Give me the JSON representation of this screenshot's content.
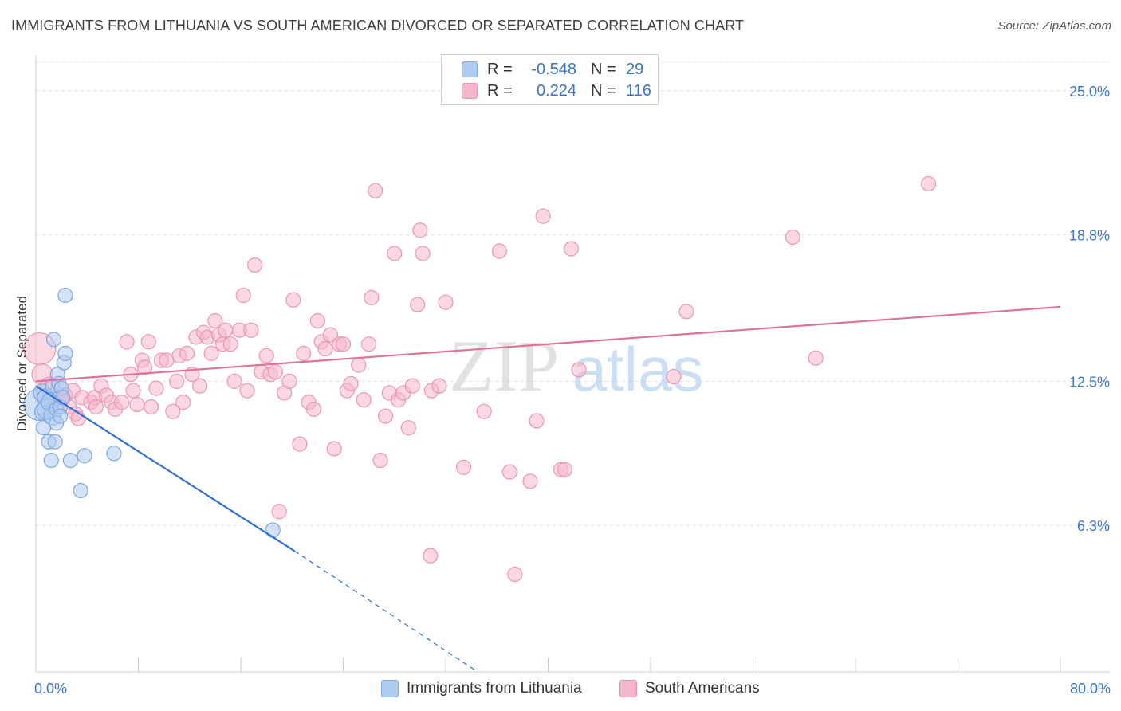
{
  "header": {
    "title": "IMMIGRANTS FROM LITHUANIA VS SOUTH AMERICAN DIVORCED OR SEPARATED CORRELATION CHART",
    "source": "Source: ZipAtlas.com"
  },
  "watermark": {
    "zip": "ZIP",
    "atlas": "atlas"
  },
  "legend_top": {
    "rows": [
      {
        "r_label": "R =",
        "r_value": "-0.548",
        "n_label": "N =",
        "n_value": "29",
        "fill": "#aecbf0",
        "stroke": "#7ea8dd"
      },
      {
        "r_label": "R =",
        "r_value": "0.224",
        "n_label": "N = ",
        "n_value": "116",
        "fill": "#f5b7cb",
        "stroke": "#e896b1"
      }
    ]
  },
  "legend_bottom": {
    "items": [
      {
        "label": "Immigrants from Lithuania",
        "fill": "#aecbf0",
        "stroke": "#7ea8dd"
      },
      {
        "label": "South Americans",
        "fill": "#f5b7cb",
        "stroke": "#e896b1"
      }
    ]
  },
  "chart_data": {
    "type": "scatter",
    "title": "IMMIGRANTS FROM LITHUANIA VS SOUTH AMERICAN DIVORCED OR SEPARATED CORRELATION CHART",
    "xlabel": "",
    "ylabel": "Divorced or Separated",
    "xlim": [
      0,
      80
    ],
    "ylim": [
      0,
      26.5
    ],
    "x_tick_labels": [
      {
        "value": 0,
        "label": "0.0%"
      },
      {
        "value": 80,
        "label": "80.0%"
      }
    ],
    "y_tick_labels": [
      {
        "value": 6.3,
        "label": "6.3%"
      },
      {
        "value": 12.5,
        "label": "12.5%"
      },
      {
        "value": 18.8,
        "label": "18.8%"
      },
      {
        "value": 25.0,
        "label": "25.0%"
      }
    ],
    "grid": true,
    "legend_position": "bottom",
    "series": [
      {
        "name": "Immigrants from Lithuania",
        "color": "#7ea8dd",
        "fill": "#aecbf0",
        "line_color": "#2f6fd1",
        "trend": {
          "x0": 0.0,
          "y0": 12.3,
          "x1": 20.2,
          "y1": 5.2,
          "dash_to_x": 34.5,
          "dash_to_y": 0.0
        },
        "points": [
          [
            0.3,
            11.5,
            4
          ],
          [
            0.5,
            12.0,
            2
          ],
          [
            0.6,
            11.2,
            2
          ],
          [
            0.6,
            10.5,
            1
          ],
          [
            0.8,
            11.8,
            2
          ],
          [
            0.9,
            11.3,
            3
          ],
          [
            1.0,
            9.9,
            1
          ],
          [
            1.1,
            11.6,
            2
          ],
          [
            1.2,
            9.1,
            1
          ],
          [
            1.3,
            12.3,
            1
          ],
          [
            1.3,
            11.0,
            2
          ],
          [
            1.4,
            14.3,
            1
          ],
          [
            1.5,
            9.9,
            1
          ],
          [
            1.6,
            11.3,
            1
          ],
          [
            1.6,
            10.7,
            1
          ],
          [
            1.7,
            12.8,
            1
          ],
          [
            1.8,
            12.4,
            1
          ],
          [
            1.9,
            11.4,
            1
          ],
          [
            1.9,
            11.0,
            1
          ],
          [
            2.0,
            12.2,
            1
          ],
          [
            2.1,
            11.8,
            1
          ],
          [
            2.2,
            13.3,
            1
          ],
          [
            2.3,
            13.7,
            1
          ],
          [
            2.3,
            16.2,
            1
          ],
          [
            2.7,
            9.1,
            1
          ],
          [
            3.5,
            7.8,
            1
          ],
          [
            3.8,
            9.3,
            1
          ],
          [
            6.1,
            9.4,
            1
          ],
          [
            18.5,
            6.1,
            1
          ]
        ]
      },
      {
        "name": "South Americans",
        "color": "#e896b1",
        "fill": "#f5b7cb",
        "line_color": "#e07299",
        "trend": {
          "x0": 0.0,
          "y0": 12.5,
          "x1": 80.0,
          "y1": 15.7
        },
        "points": [
          [
            0.3,
            13.9,
            4
          ],
          [
            0.5,
            12.8,
            3
          ],
          [
            1.0,
            12.3,
            2
          ],
          [
            1.3,
            11.6,
            1
          ],
          [
            1.6,
            12.0,
            1
          ],
          [
            2.0,
            11.7,
            1
          ],
          [
            2.3,
            11.9,
            1
          ],
          [
            2.6,
            11.4,
            1
          ],
          [
            2.9,
            12.1,
            1
          ],
          [
            3.1,
            11.1,
            1
          ],
          [
            3.3,
            10.9,
            1
          ],
          [
            3.6,
            11.8,
            1
          ],
          [
            4.3,
            11.6,
            1
          ],
          [
            4.6,
            11.8,
            1
          ],
          [
            4.7,
            11.4,
            1
          ],
          [
            5.1,
            12.3,
            1
          ],
          [
            5.5,
            11.9,
            1
          ],
          [
            5.9,
            11.6,
            1
          ],
          [
            6.2,
            11.3,
            1
          ],
          [
            6.7,
            11.6,
            1
          ],
          [
            7.1,
            14.2,
            1
          ],
          [
            7.4,
            12.8,
            1
          ],
          [
            7.6,
            12.1,
            1
          ],
          [
            7.9,
            11.5,
            1
          ],
          [
            8.3,
            13.4,
            1
          ],
          [
            8.5,
            13.1,
            1
          ],
          [
            8.8,
            14.2,
            1
          ],
          [
            9.0,
            11.4,
            1
          ],
          [
            9.4,
            12.2,
            1
          ],
          [
            9.8,
            13.4,
            1
          ],
          [
            10.2,
            13.4,
            1
          ],
          [
            10.7,
            11.2,
            1
          ],
          [
            11.0,
            12.5,
            1
          ],
          [
            11.2,
            13.6,
            1
          ],
          [
            11.5,
            11.6,
            1
          ],
          [
            11.8,
            13.7,
            1
          ],
          [
            12.2,
            12.8,
            1
          ],
          [
            12.5,
            14.4,
            1
          ],
          [
            12.8,
            12.3,
            1
          ],
          [
            13.1,
            14.6,
            1
          ],
          [
            13.4,
            14.4,
            1
          ],
          [
            13.7,
            13.7,
            1
          ],
          [
            14.0,
            15.1,
            1
          ],
          [
            14.3,
            14.5,
            1
          ],
          [
            14.6,
            14.1,
            1
          ],
          [
            14.8,
            14.7,
            1
          ],
          [
            15.2,
            14.1,
            1
          ],
          [
            15.5,
            12.5,
            1
          ],
          [
            15.9,
            14.7,
            1
          ],
          [
            16.2,
            16.2,
            1
          ],
          [
            16.5,
            12.1,
            1
          ],
          [
            16.8,
            14.7,
            1
          ],
          [
            17.1,
            17.5,
            1
          ],
          [
            17.6,
            12.9,
            1
          ],
          [
            18.0,
            13.6,
            1
          ],
          [
            18.3,
            12.8,
            1
          ],
          [
            18.7,
            12.9,
            1
          ],
          [
            19.0,
            6.9,
            1
          ],
          [
            19.4,
            12.0,
            1
          ],
          [
            19.8,
            12.5,
            1
          ],
          [
            20.1,
            16.0,
            1
          ],
          [
            20.6,
            9.8,
            1
          ],
          [
            20.9,
            13.7,
            1
          ],
          [
            21.3,
            11.6,
            1
          ],
          [
            21.7,
            11.3,
            1
          ],
          [
            22.0,
            15.1,
            1
          ],
          [
            22.3,
            14.2,
            1
          ],
          [
            22.6,
            13.9,
            1
          ],
          [
            23.0,
            14.5,
            1
          ],
          [
            23.3,
            9.6,
            1
          ],
          [
            23.7,
            14.1,
            1
          ],
          [
            24.0,
            14.1,
            1
          ],
          [
            24.3,
            12.1,
            1
          ],
          [
            24.6,
            12.4,
            1
          ],
          [
            25.2,
            13.2,
            1
          ],
          [
            25.6,
            11.7,
            1
          ],
          [
            26.0,
            14.1,
            1
          ],
          [
            26.2,
            16.1,
            1
          ],
          [
            26.5,
            20.7,
            1
          ],
          [
            26.9,
            9.1,
            1
          ],
          [
            27.3,
            11.0,
            1
          ],
          [
            27.6,
            12.0,
            1
          ],
          [
            28.0,
            18.0,
            1
          ],
          [
            28.3,
            11.7,
            1
          ],
          [
            28.7,
            12.0,
            1
          ],
          [
            29.1,
            10.5,
            1
          ],
          [
            29.4,
            12.3,
            1
          ],
          [
            29.8,
            15.8,
            1
          ],
          [
            30.0,
            19.0,
            1
          ],
          [
            30.2,
            18.0,
            1
          ],
          [
            30.9,
            12.1,
            1
          ],
          [
            31.5,
            12.3,
            1
          ],
          [
            32.0,
            15.9,
            1
          ],
          [
            30.8,
            5.0,
            1
          ],
          [
            33.4,
            8.8,
            1
          ],
          [
            35.0,
            11.2,
            1
          ],
          [
            36.2,
            18.1,
            1
          ],
          [
            37.0,
            8.6,
            1
          ],
          [
            37.4,
            4.2,
            1
          ],
          [
            38.6,
            8.2,
            1
          ],
          [
            39.1,
            10.8,
            1
          ],
          [
            39.6,
            19.6,
            1
          ],
          [
            41.0,
            8.7,
            1
          ],
          [
            41.3,
            8.7,
            1
          ],
          [
            41.8,
            18.2,
            1
          ],
          [
            42.4,
            13.0,
            1
          ],
          [
            49.8,
            12.7,
            1
          ],
          [
            50.8,
            15.5,
            1
          ],
          [
            59.1,
            18.7,
            1
          ],
          [
            60.9,
            13.5,
            1
          ],
          [
            69.7,
            21.0,
            1
          ]
        ]
      }
    ]
  }
}
